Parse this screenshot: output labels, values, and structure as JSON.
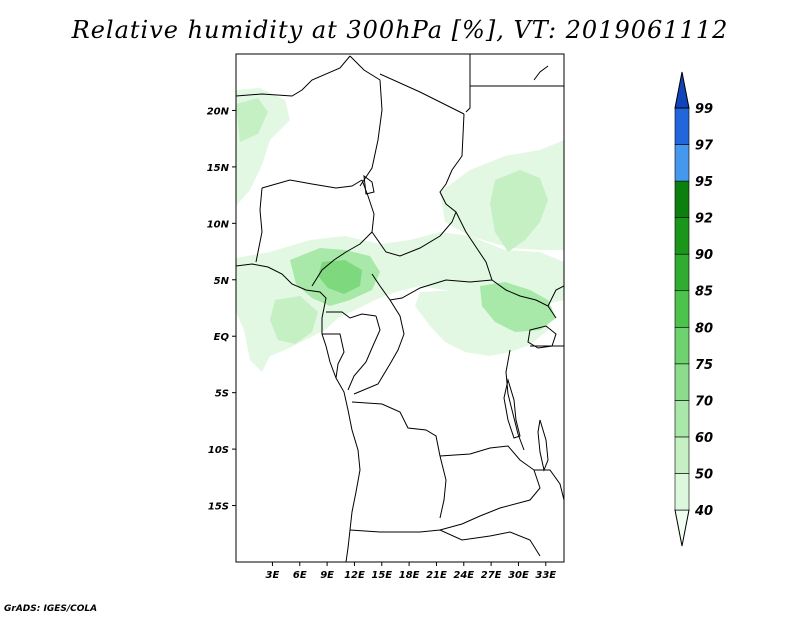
{
  "title": "Relative humidity at 300hPa [%], VT: 2019061112",
  "credit": "GrADS: IGES/COLA",
  "map": {
    "lon_range": [
      -1,
      35
    ],
    "lat_range": [
      -20,
      25
    ],
    "lat_ticks": [
      {
        "value": 20,
        "label": "20N"
      },
      {
        "value": 15,
        "label": "15N"
      },
      {
        "value": 10,
        "label": "10N"
      },
      {
        "value": 5,
        "label": "5N"
      },
      {
        "value": 0,
        "label": "EQ"
      },
      {
        "value": -5,
        "label": "5S"
      },
      {
        "value": -10,
        "label": "10S"
      },
      {
        "value": -15,
        "label": "15S"
      }
    ],
    "lon_ticks": [
      {
        "value": 3,
        "label": "3E"
      },
      {
        "value": 6,
        "label": "6E"
      },
      {
        "value": 9,
        "label": "9E"
      },
      {
        "value": 12,
        "label": "12E"
      },
      {
        "value": 15,
        "label": "15E"
      },
      {
        "value": 18,
        "label": "18E"
      },
      {
        "value": 21,
        "label": "21E"
      },
      {
        "value": 24,
        "label": "24E"
      },
      {
        "value": 27,
        "label": "27E"
      },
      {
        "value": 30,
        "label": "30E"
      },
      {
        "value": 33,
        "label": "33E"
      }
    ]
  },
  "colorbar": {
    "levels": [
      40,
      50,
      60,
      70,
      75,
      80,
      85,
      90,
      92,
      95,
      97,
      99
    ],
    "colors": [
      "#f0fff0",
      "#dcf8dc",
      "#c4f0c4",
      "#a8e8a8",
      "#8cdc8c",
      "#6ed26e",
      "#4cc44c",
      "#30ac30",
      "#1a961a",
      "#0c800c",
      "#4499ee",
      "#2266dd",
      "#1144bb"
    ]
  },
  "colors": {
    "border": "#000000",
    "background": "#ffffff"
  }
}
